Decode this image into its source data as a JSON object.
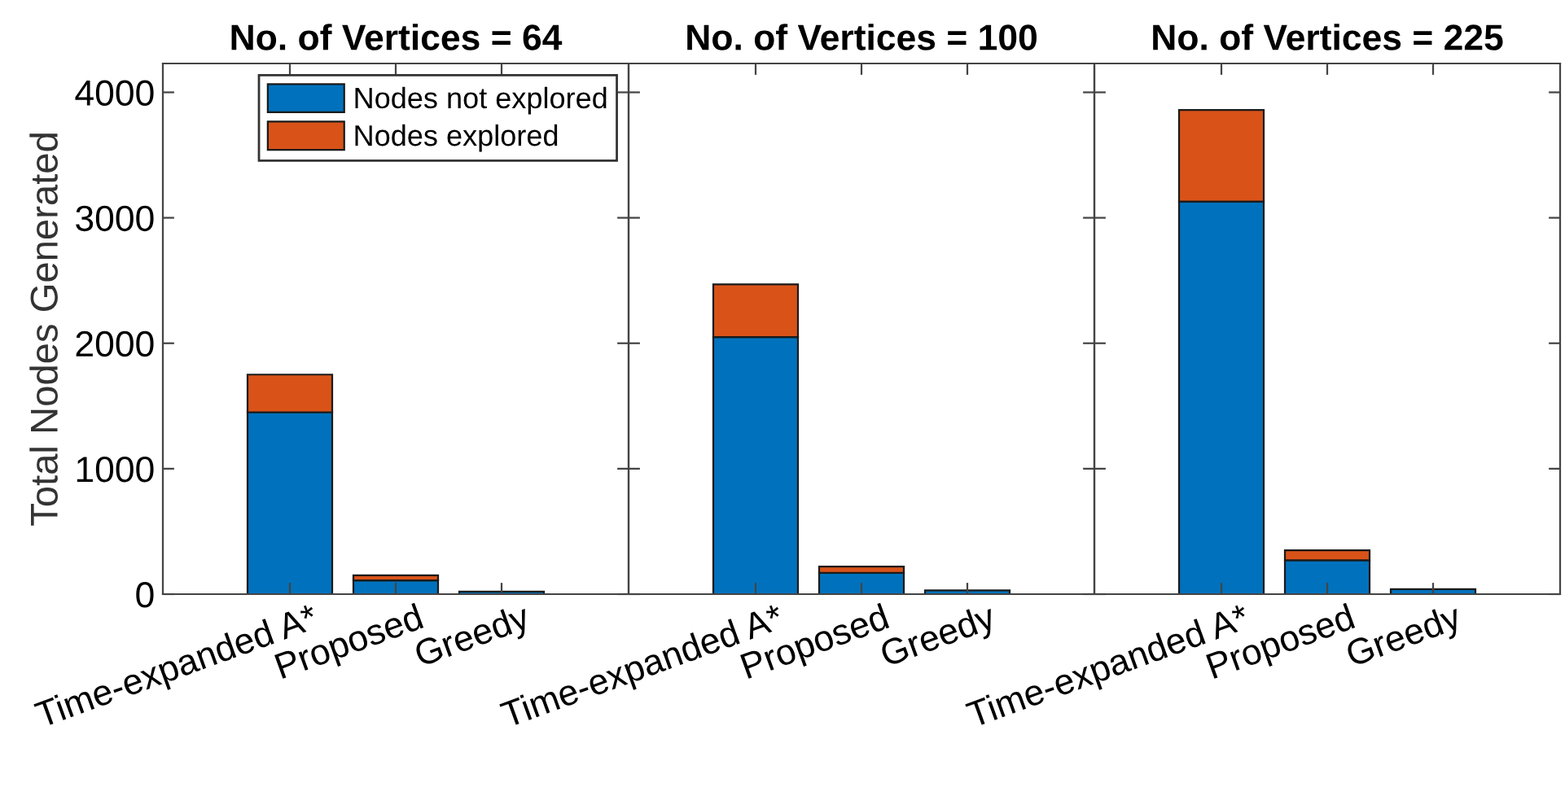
{
  "chart_data": [
    {
      "type": "bar",
      "stacked": true,
      "title": "No. of Vertices = 64",
      "ylabel": "Total Nodes Generated",
      "categories": [
        "Time-expanded A*",
        "Proposed",
        "Greedy"
      ],
      "series": [
        {
          "name": "Nodes not explored",
          "color": "#0072bd",
          "values": [
            1450,
            110,
            20
          ]
        },
        {
          "name": "Nodes explored",
          "color": "#d95319",
          "values": [
            300,
            40,
            null
          ]
        }
      ],
      "ylim": [
        0,
        4230
      ],
      "yticks": [
        0,
        1000,
        2000,
        3000,
        4000
      ],
      "legend": "top right",
      "grid": false
    },
    {
      "type": "bar",
      "stacked": true,
      "title": "No. of Vertices = 100",
      "categories": [
        "Time-expanded A*",
        "Proposed",
        "Greedy"
      ],
      "series": [
        {
          "color": "#0072bd",
          "values": [
            2050,
            170,
            30
          ]
        },
        {
          "color": "#d95319",
          "values": [
            420,
            50,
            null
          ]
        }
      ],
      "ylim": [
        0,
        4230
      ],
      "yticks": [
        0,
        1000,
        2000,
        3000,
        4000
      ],
      "tick_labels": "x",
      "grid": false
    },
    {
      "type": "bar",
      "stacked": true,
      "title": "No. of Vertices = 225",
      "categories": [
        "Time-expanded A*",
        "Proposed",
        "Greedy"
      ],
      "series": [
        {
          "color": "#0072bd",
          "values": [
            3130,
            270,
            40
          ]
        },
        {
          "color": "#d95319",
          "values": [
            730,
            80,
            null
          ]
        }
      ],
      "ylim": [
        0,
        4230
      ],
      "yticks": [
        0,
        1000,
        2000,
        3000,
        4000
      ],
      "tick_labels": "x",
      "grid": false
    }
  ]
}
